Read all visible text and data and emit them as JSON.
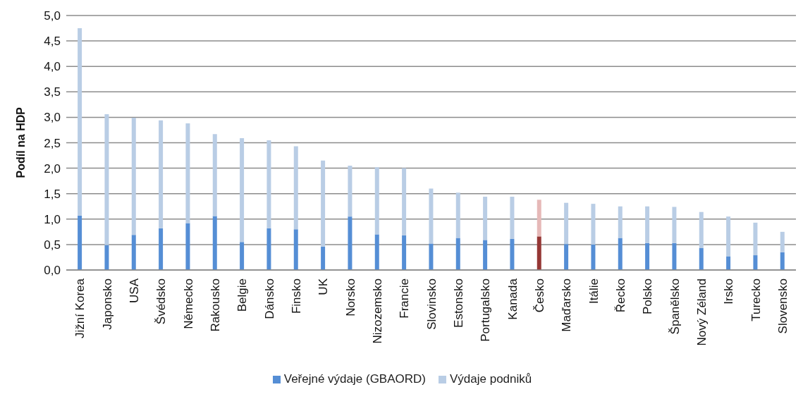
{
  "chart_data": {
    "type": "bar",
    "stacked": true,
    "ylabel": "Podíl na HDP",
    "categories": [
      "Jižní Korea",
      "Japonsko",
      "USA",
      "Švédsko",
      "Německo",
      "Rakousko",
      "Belgie",
      "Dánsko",
      "Finsko",
      "UK",
      "Norsko",
      "Nizozemsko",
      "Francie",
      "Slovinsko",
      "Estonsko",
      "Portugalsko",
      "Kanada",
      "Česko",
      "Maďarsko",
      "Itálie",
      "Řecko",
      "Polsko",
      "Španělsko",
      "Nový Zéland",
      "Irsko",
      "Turecko",
      "Slovensko"
    ],
    "series": [
      {
        "name": "Veřejné výdaje (GBAORD)",
        "color": "#558ed5",
        "colors": [
          "#558ed5",
          "#558ed5",
          "#558ed5",
          "#558ed5",
          "#558ed5",
          "#558ed5",
          "#558ed5",
          "#558ed5",
          "#558ed5",
          "#558ed5",
          "#558ed5",
          "#558ed5",
          "#558ed5",
          "#558ed5",
          "#558ed5",
          "#558ed5",
          "#558ed5",
          "#953735",
          "#558ed5",
          "#558ed5",
          "#558ed5",
          "#558ed5",
          "#558ed5",
          "#558ed5",
          "#558ed5",
          "#558ed5",
          "#558ed5"
        ],
        "values": [
          1.07,
          0.49,
          0.69,
          0.82,
          0.92,
          1.06,
          0.55,
          0.82,
          0.8,
          0.46,
          1.05,
          0.7,
          0.68,
          0.52,
          0.63,
          0.59,
          0.61,
          0.66,
          0.51,
          0.5,
          0.63,
          0.53,
          0.53,
          0.43,
          0.27,
          0.29,
          0.35
        ]
      },
      {
        "name": "Výdaje podniků",
        "color": "#b9cde5",
        "colors": [
          "#b9cde5",
          "#b9cde5",
          "#b9cde5",
          "#b9cde5",
          "#b9cde5",
          "#b9cde5",
          "#b9cde5",
          "#b9cde5",
          "#b9cde5",
          "#b9cde5",
          "#b9cde5",
          "#b9cde5",
          "#b9cde5",
          "#b9cde5",
          "#b9cde5",
          "#b9cde5",
          "#b9cde5",
          "#e6b9b8",
          "#b9cde5",
          "#b9cde5",
          "#b9cde5",
          "#b9cde5",
          "#b9cde5",
          "#b9cde5",
          "#b9cde5",
          "#b9cde5",
          "#b9cde5"
        ],
        "values": [
          3.68,
          2.57,
          2.3,
          2.12,
          1.96,
          1.61,
          2.04,
          1.73,
          1.63,
          1.69,
          1.0,
          1.32,
          1.32,
          1.08,
          0.89,
          0.85,
          0.83,
          0.72,
          0.81,
          0.8,
          0.62,
          0.72,
          0.71,
          0.71,
          0.78,
          0.64,
          0.4
        ]
      }
    ],
    "ylim": [
      0,
      5
    ],
    "yticks": [
      {
        "value": 0,
        "label": "0,0"
      },
      {
        "value": 0.5,
        "label": "0,5"
      },
      {
        "value": 1,
        "label": "1,0"
      },
      {
        "value": 1.5,
        "label": "1,5"
      },
      {
        "value": 2,
        "label": "2,0"
      },
      {
        "value": 2.5,
        "label": "2,5"
      },
      {
        "value": 3,
        "label": "3,0"
      },
      {
        "value": 3.5,
        "label": "3,5"
      },
      {
        "value": 4,
        "label": "4,0"
      },
      {
        "value": 4.5,
        "label": "4,5"
      },
      {
        "value": 5,
        "label": "5,0"
      }
    ],
    "grid": "y",
    "legend": "bottom"
  }
}
